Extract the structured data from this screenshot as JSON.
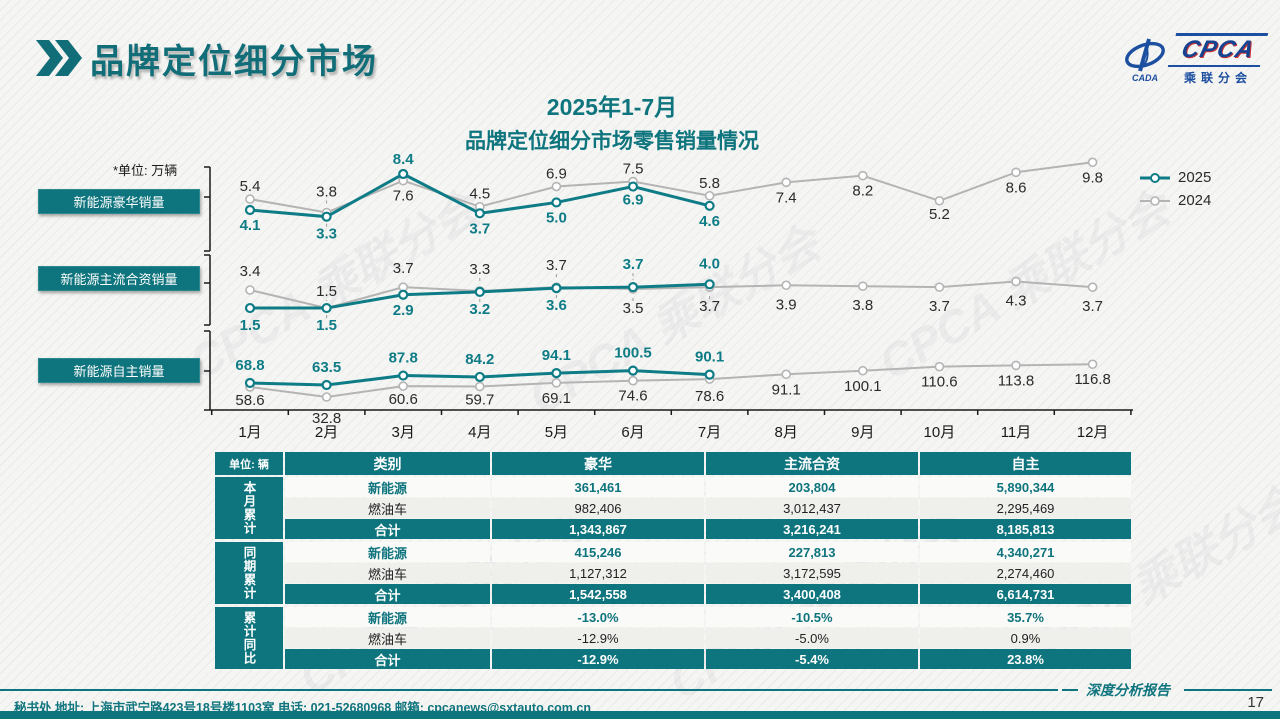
{
  "header": {
    "title": "品牌定位细分市场",
    "logo": {
      "brand": "CPCA",
      "sub": "乘联分会",
      "emblem": "CADA"
    }
  },
  "chart": {
    "title_line1": "2025年1-7月",
    "title_line2": "品牌定位细分市场零售销量情况",
    "unit_note": "*单位: 万辆"
  },
  "chart_data": {
    "type": "line",
    "x": [
      "1月",
      "2月",
      "3月",
      "4月",
      "5月",
      "6月",
      "7月",
      "8月",
      "9月",
      "10月",
      "11月",
      "12月"
    ],
    "legend": [
      "2025",
      "2024"
    ],
    "unit": "万辆",
    "panels": [
      {
        "title": "新能源豪华销量",
        "series": [
          {
            "name": "2025",
            "values": [
              4.1,
              3.3,
              8.4,
              3.7,
              5.0,
              6.9,
              4.6
            ]
          },
          {
            "name": "2024",
            "values": [
              5.4,
              3.8,
              7.6,
              4.5,
              6.9,
              7.5,
              5.8,
              7.4,
              8.2,
              5.2,
              8.6,
              9.8
            ]
          }
        ]
      },
      {
        "title": "新能源主流合资销量",
        "series": [
          {
            "name": "2025",
            "values": [
              1.5,
              1.5,
              2.9,
              3.2,
              3.6,
              3.7,
              4.0
            ]
          },
          {
            "name": "2024",
            "values": [
              3.4,
              1.5,
              3.7,
              3.3,
              3.7,
              3.5,
              3.7,
              3.9,
              3.8,
              3.7,
              4.3,
              3.7
            ]
          }
        ]
      },
      {
        "title": "新能源自主销量",
        "series": [
          {
            "name": "2025",
            "values": [
              68.8,
              63.5,
              87.8,
              84.2,
              94.1,
              100.5,
              90.1
            ]
          },
          {
            "name": "2024",
            "values": [
              58.6,
              32.8,
              60.6,
              59.7,
              69.1,
              74.6,
              78.6,
              91.1,
              100.1,
              110.6,
              113.8,
              116.8
            ]
          }
        ]
      }
    ]
  },
  "table": {
    "unit_label": "单位: 辆",
    "headers": [
      "类别",
      "豪华",
      "主流合资",
      "自主"
    ],
    "groups": [
      {
        "label": "本月累计",
        "rows": [
          {
            "name": "新能源",
            "values": [
              "361,461",
              "203,804",
              "5,890,344"
            ]
          },
          {
            "name": "燃油车",
            "values": [
              "982,406",
              "3,012,437",
              "2,295,469"
            ]
          },
          {
            "name": "合计",
            "values": [
              "1,343,867",
              "3,216,241",
              "8,185,813"
            ]
          }
        ]
      },
      {
        "label": "同期累计",
        "rows": [
          {
            "name": "新能源",
            "values": [
              "415,246",
              "227,813",
              "4,340,271"
            ]
          },
          {
            "name": "燃油车",
            "values": [
              "1,127,312",
              "3,172,595",
              "2,274,460"
            ]
          },
          {
            "name": "合计",
            "values": [
              "1,542,558",
              "3,400,408",
              "6,614,731"
            ]
          }
        ]
      },
      {
        "label": "累计同比",
        "rows": [
          {
            "name": "新能源",
            "values": [
              "-13.0%",
              "-10.5%",
              "35.7%"
            ]
          },
          {
            "name": "燃油车",
            "values": [
              "-12.9%",
              "-5.0%",
              "0.9%"
            ]
          },
          {
            "name": "合计",
            "values": [
              "-12.9%",
              "-5.4%",
              "23.8%"
            ]
          }
        ]
      }
    ]
  },
  "footer": {
    "left": "秘书处   地址: 上海市武宁路423号18号楼1103室 电话: 021-52680968   邮箱: cpcanews@sxtauto.com.cn",
    "report_tag": "深度分析报告",
    "page": "17"
  },
  "watermark": "CPCA 乘联分会"
}
